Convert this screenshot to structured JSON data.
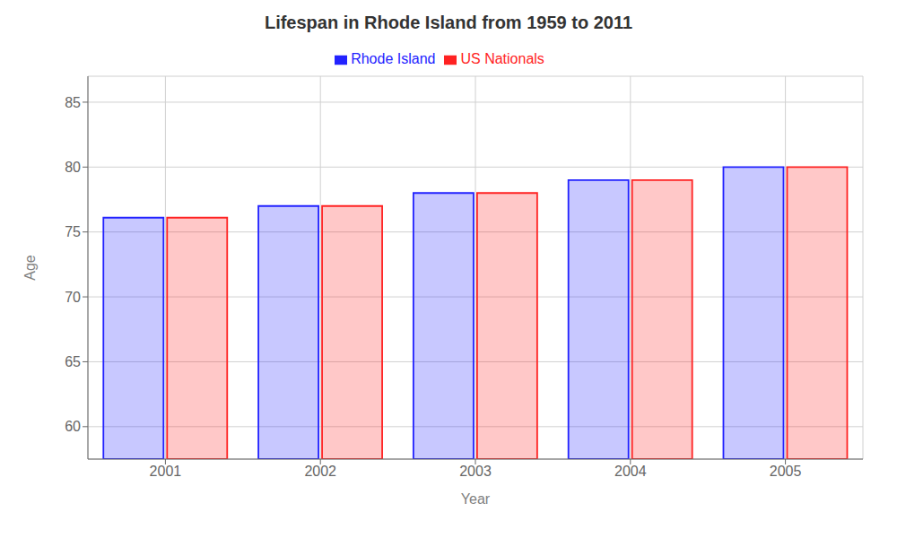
{
  "chart_data": {
    "type": "bar",
    "title": "Lifespan in Rhode Island from 1959 to 2011",
    "xlabel": "Year",
    "ylabel": "Age",
    "categories": [
      "2001",
      "2002",
      "2003",
      "2004",
      "2005"
    ],
    "series": [
      {
        "name": "Rhode Island",
        "color": "#2222ff",
        "values": [
          76.1,
          77.0,
          78.0,
          79.0,
          80.0
        ]
      },
      {
        "name": "US Nationals",
        "color": "#ff2222",
        "values": [
          76.1,
          77.0,
          78.0,
          79.0,
          80.0
        ]
      }
    ],
    "ylim": [
      57.5,
      87
    ],
    "yticks": [
      60,
      65,
      70,
      75,
      80,
      85
    ],
    "grid": true,
    "legend": "top"
  }
}
